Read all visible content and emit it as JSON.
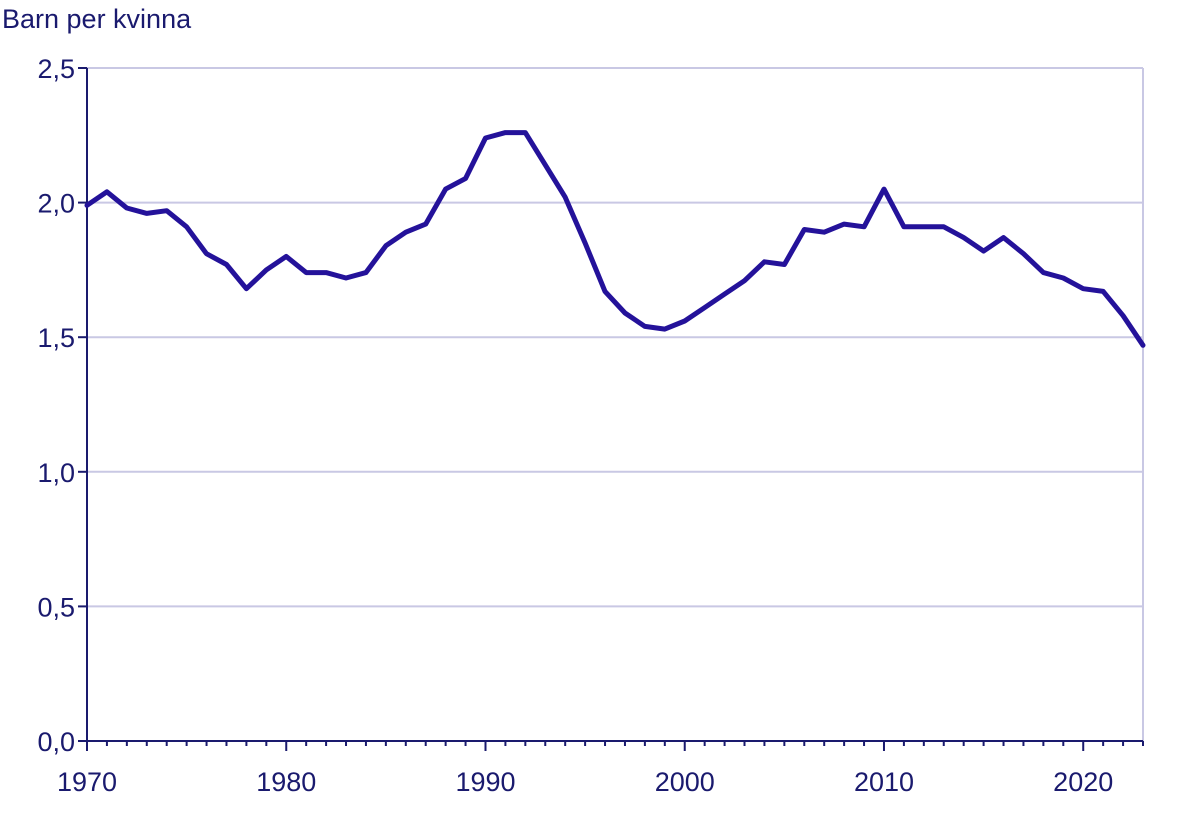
{
  "chart_data": {
    "type": "line",
    "title": "",
    "xlabel": "",
    "ylabel": "Barn per kvinna",
    "xlim": [
      1970,
      2023
    ],
    "ylim": [
      0,
      2.5
    ],
    "x_ticks": [
      "1970",
      "1980",
      "1990",
      "2000",
      "2010",
      "2020"
    ],
    "y_ticks": [
      "0,0",
      "0,5",
      "1,0",
      "1,5",
      "2,0",
      "2,5"
    ],
    "grid": "horizontal",
    "legend": "none",
    "colors": {
      "line": "#24129a",
      "grid": "#c9c8e4",
      "axis": "#1a1a6e",
      "text": "#1a1a6e"
    },
    "series": [
      {
        "x": [
          1970,
          1971,
          1972,
          1973,
          1974,
          1975,
          1976,
          1977,
          1978,
          1979,
          1980,
          1981,
          1982,
          1983,
          1984,
          1985,
          1986,
          1987,
          1988,
          1989,
          1990,
          1991,
          1992,
          1993,
          1994,
          1995,
          1996,
          1997,
          1998,
          1999,
          2000,
          2001,
          2002,
          2003,
          2004,
          2005,
          2006,
          2007,
          2008,
          2009,
          2010,
          2011,
          2012,
          2013,
          2014,
          2015,
          2016,
          2017,
          2018,
          2019,
          2020,
          2021,
          2022,
          2023
        ],
        "values": [
          1.99,
          2.04,
          1.98,
          1.96,
          1.97,
          1.91,
          1.81,
          1.77,
          1.68,
          1.75,
          1.8,
          1.74,
          1.74,
          1.72,
          1.74,
          1.84,
          1.89,
          1.92,
          2.05,
          2.09,
          2.24,
          2.26,
          2.26,
          2.14,
          2.02,
          1.85,
          1.67,
          1.59,
          1.54,
          1.53,
          1.56,
          1.61,
          1.66,
          1.71,
          1.78,
          1.77,
          1.9,
          1.89,
          1.92,
          1.91,
          2.05,
          1.91,
          1.91,
          1.91,
          1.87,
          1.82,
          1.87,
          1.81,
          1.74,
          1.72,
          1.68,
          1.67,
          1.58,
          1.47
        ]
      }
    ]
  }
}
